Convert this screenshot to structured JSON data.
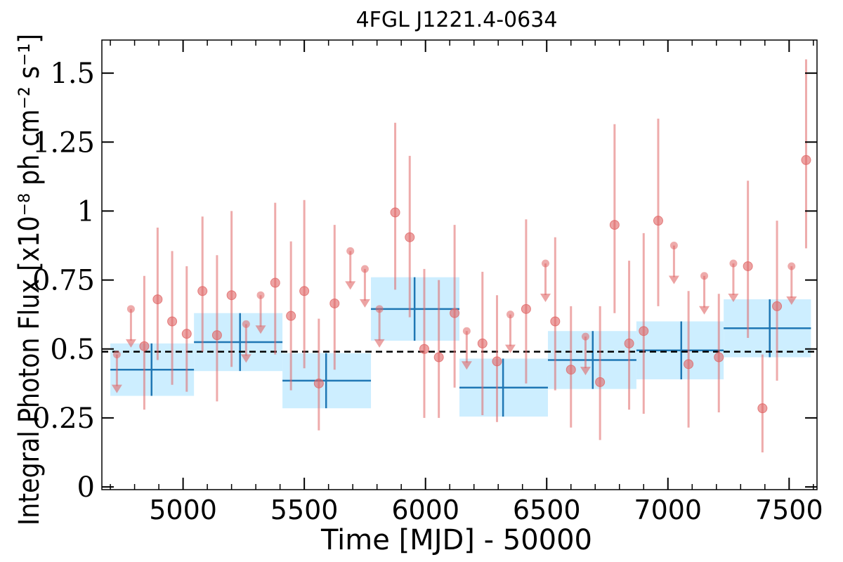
{
  "chart_data": {
    "type": "scatter",
    "title": "4FGL J1221.4-0634",
    "xlabel": "Time [MJD] - 50000",
    "ylabel": "Integral Photon Flux [x10⁻⁸ ph cm⁻² s⁻¹]",
    "xlim": [
      4665,
      7615
    ],
    "ylim": [
      -0.01,
      1.62
    ],
    "xticks": [
      5000,
      5500,
      6000,
      6500,
      7000,
      7500
    ],
    "xtick_labels": [
      "5000",
      "5500",
      "6000",
      "6500",
      "7000",
      "7500"
    ],
    "yticks": [
      0,
      0.25,
      0.5,
      0.75,
      1.0,
      1.25,
      1.5
    ],
    "ytick_labels": [
      "0",
      "0.25",
      "0.5",
      "0.75",
      "1",
      "1.25",
      "1.5"
    ],
    "mean_flux": 0.49,
    "colors": {
      "points": "#e06666",
      "bins_line": "#1f77b4",
      "bins_fill": "#cdeeff",
      "mean_line": "#000000"
    },
    "series": [
      {
        "kind": "upper_limits",
        "x": [
          4727,
          4785,
          5260,
          5320,
          5690,
          5750,
          5810,
          6170,
          6350,
          6495,
          6660,
          7025,
          7150,
          7270,
          7510
        ],
        "y": [
          0.48,
          0.645,
          0.59,
          0.695,
          0.855,
          0.79,
          0.645,
          0.565,
          0.625,
          0.81,
          0.545,
          0.875,
          0.765,
          0.81,
          0.8
        ]
      },
      {
        "kind": "detections",
        "x": [
          4840,
          4895,
          4955,
          5015,
          5080,
          5140,
          5200,
          5380,
          5445,
          5500,
          5560,
          5625,
          5875,
          5935,
          5995,
          6055,
          6120,
          6235,
          6295,
          6415,
          6535,
          6600,
          6720,
          6780,
          6840,
          6900,
          6960,
          7085,
          7210,
          7330,
          7390,
          7450,
          7570
        ],
        "y": [
          0.51,
          0.68,
          0.6,
          0.555,
          0.71,
          0.55,
          0.695,
          0.74,
          0.62,
          0.71,
          0.375,
          0.665,
          0.995,
          0.905,
          0.5,
          0.47,
          0.63,
          0.52,
          0.455,
          0.645,
          0.6,
          0.425,
          0.38,
          0.95,
          0.52,
          0.565,
          0.965,
          0.445,
          0.47,
          0.8,
          0.285,
          0.655,
          1.185
        ],
        "y_err_low": [
          0.23,
          0.22,
          0.23,
          0.21,
          0.22,
          0.24,
          0.26,
          0.26,
          0.27,
          0.28,
          0.17,
          0.24,
          0.28,
          0.29,
          0.25,
          0.22,
          0.27,
          0.26,
          0.22,
          0.27,
          0.25,
          0.21,
          0.21,
          0.32,
          0.24,
          0.3,
          0.31,
          0.23,
          0.2,
          0.26,
          0.16,
          0.27,
          0.32
        ],
        "y_err_high": [
          0.255,
          0.26,
          0.255,
          0.245,
          0.27,
          0.29,
          0.305,
          0.29,
          0.27,
          0.33,
          0.235,
          0.285,
          0.325,
          0.295,
          0.29,
          0.28,
          0.32,
          0.26,
          0.24,
          0.325,
          0.305,
          0.23,
          0.275,
          0.365,
          0.3,
          0.355,
          0.37,
          0.265,
          0.23,
          0.31,
          0.195,
          0.31,
          0.365
        ]
      },
      {
        "kind": "binned",
        "x_low": [
          4700,
          5045,
          5410,
          5775,
          6140,
          6505,
          6870,
          7230
        ],
        "x_high": [
          5045,
          5410,
          5775,
          6140,
          6505,
          6870,
          7230,
          7590
        ],
        "x_center": [
          4870,
          5235,
          5590,
          5955,
          6320,
          6690,
          7055,
          7420
        ],
        "y": [
          0.425,
          0.525,
          0.385,
          0.645,
          0.36,
          0.46,
          0.495,
          0.575
        ],
        "y_err": [
          0.095,
          0.105,
          0.1,
          0.115,
          0.105,
          0.105,
          0.105,
          0.105
        ]
      }
    ]
  }
}
